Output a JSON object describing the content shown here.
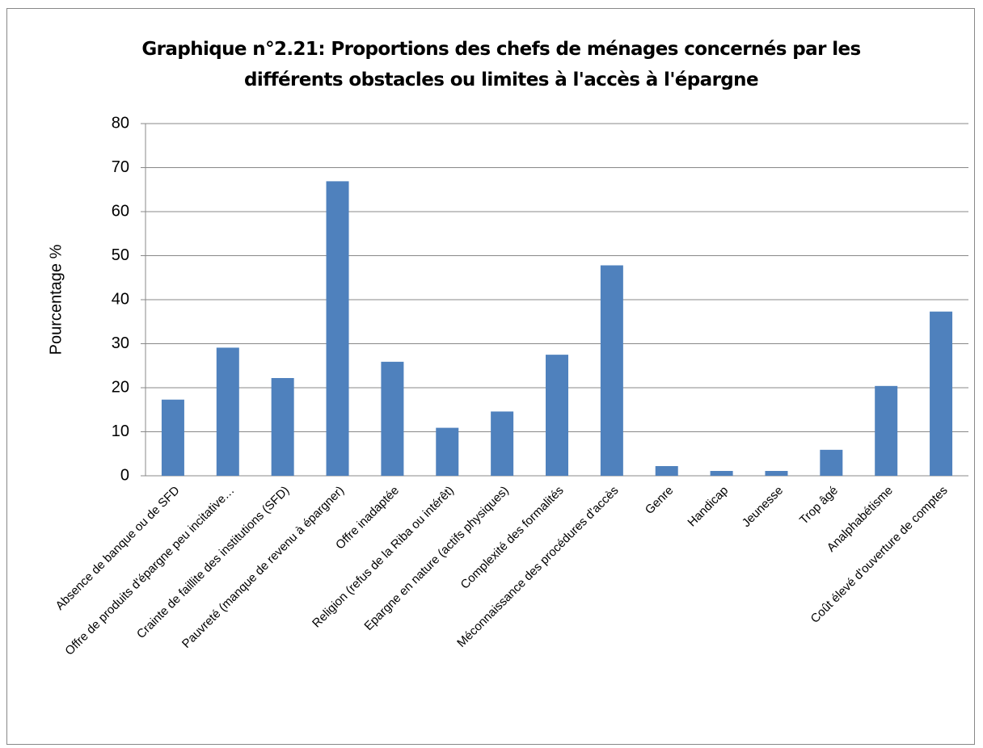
{
  "chart_data": {
    "type": "bar",
    "title": "Graphique n°2.21: Proportions des chefs de ménages concernés par les différents obstacles ou limites à l'accès à l'épargne",
    "y_label": "Pourcentage %",
    "categories": [
      "Absence de banque ou de SFD",
      "Offre de produits d'épargne peu incitative…",
      "Crainte de faillite des institutions (SFD)",
      "Pauvreté (manque de revenu à épargner)",
      "Offre inadaptée",
      "Religion (refus de la Riba ou intérêt)",
      "Epargne en nature (actifs physiques)",
      "Complexité des formalités",
      "Méconnaissance des procédures d'accès",
      "Genre",
      "Handicap",
      "Jeunesse",
      "Trop âgé",
      "Analphabétisme",
      "Coût élevé d'ouverture de comptes"
    ],
    "values": [
      17.3,
      29.1,
      22.2,
      66.9,
      25.9,
      10.9,
      14.6,
      27.5,
      47.8,
      2.2,
      1.1,
      1.1,
      5.9,
      20.4,
      37.3
    ],
    "color": "#4f81bd",
    "ylim": [
      0,
      80
    ],
    "yticks": [
      0,
      10,
      20,
      30,
      40,
      50,
      60,
      70,
      80
    ],
    "grid": true
  }
}
